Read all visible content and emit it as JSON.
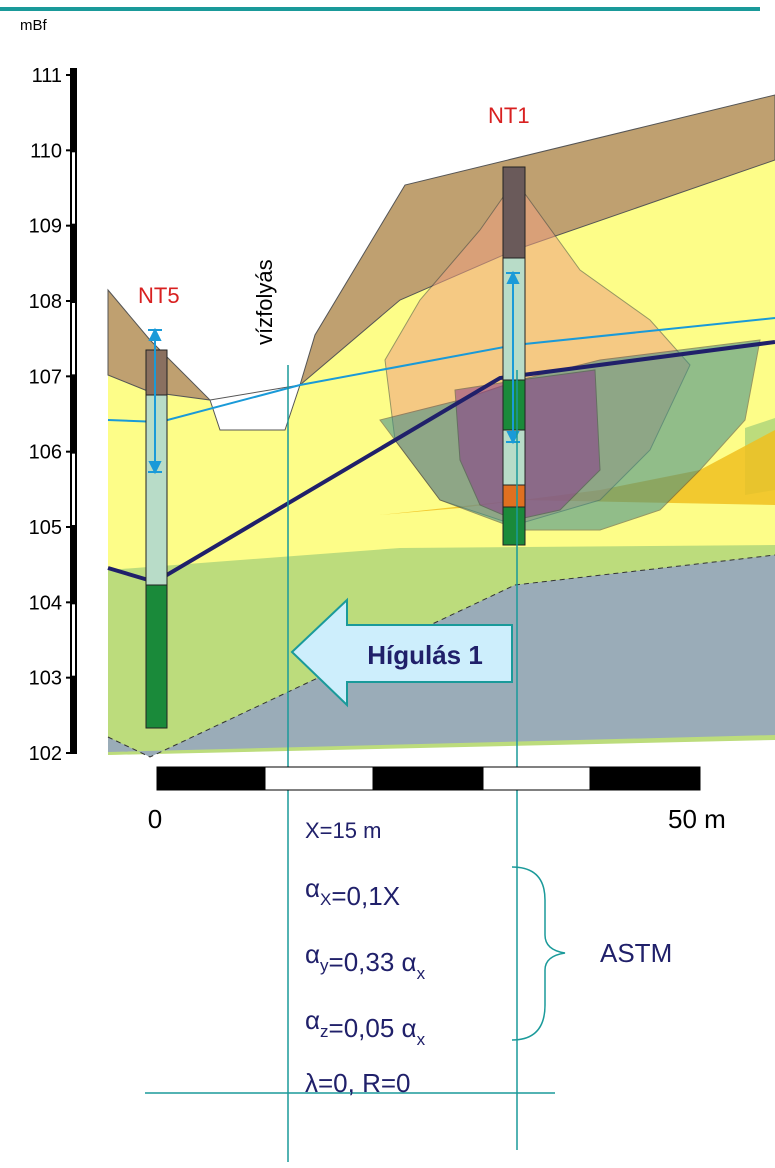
{
  "header": {
    "axis_label": "mBf"
  },
  "elevation_axis": {
    "ticks": [
      102,
      103,
      104,
      105,
      106,
      107,
      108,
      109,
      110,
      111
    ]
  },
  "wells": [
    {
      "label": "NT5"
    },
    {
      "label": "NT1"
    }
  ],
  "stream_label": "vízfolyás",
  "flow_arrow": {
    "label": "Hígulás 1"
  },
  "scale_bar": {
    "start_label": "0",
    "end_label": "50 m"
  },
  "parameters": {
    "distance": "X=15 m",
    "formulas": [
      [
        {
          "text": "α"
        },
        {
          "sub": "X"
        },
        {
          "text": "=0,1X"
        }
      ],
      [
        {
          "text": "α"
        },
        {
          "sub": "y"
        },
        {
          "text": "=0,33 α"
        },
        {
          "sub": "x"
        }
      ],
      [
        {
          "text": "α"
        },
        {
          "sub": "z"
        },
        {
          "text": "=0,05 α"
        },
        {
          "sub": "x"
        }
      ]
    ],
    "bracket_label": "ASTM",
    "retardation": "λ=0, R=0"
  }
}
